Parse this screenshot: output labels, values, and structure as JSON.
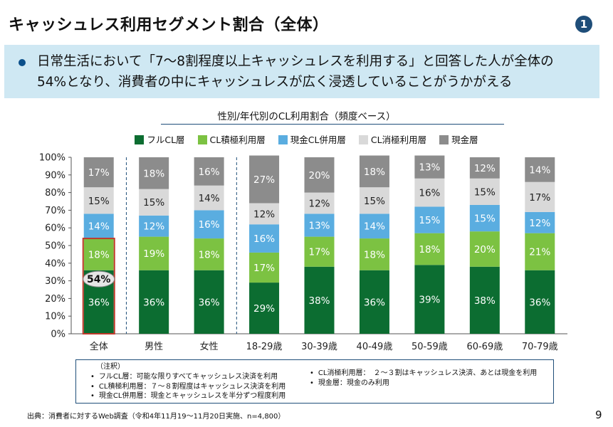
{
  "header": {
    "title": "キャッシュレス利用セグメント割合（全体）",
    "badge": "1"
  },
  "banner": {
    "line1": "日常生活において「7～8割程度以上キャッシュレスを利用する」と回答した人が全体の",
    "line2": "54%となり、消費者の中にキャッシュレスが広く浸透していることがうかがえる"
  },
  "chart_data": {
    "type": "bar",
    "stacked": true,
    "percent": true,
    "title": "性別/年代別のCL利用割合（頻度ベース）",
    "categories": [
      "全体",
      "男性",
      "女性",
      "18-29歳",
      "30-39歳",
      "40-49歳",
      "50-59歳",
      "60-69歳",
      "70-79歳"
    ],
    "series": [
      {
        "name": "フルCL層",
        "color": "#0c6d31",
        "values": [
          36,
          36,
          36,
          29,
          38,
          36,
          39,
          38,
          36
        ]
      },
      {
        "name": "CL積極利用層",
        "color": "#7cc242",
        "values": [
          18,
          19,
          18,
          17,
          17,
          18,
          18,
          20,
          21
        ]
      },
      {
        "name": "現金CL併用層",
        "color": "#5aade0",
        "values": [
          14,
          12,
          16,
          16,
          13,
          14,
          15,
          15,
          12
        ]
      },
      {
        "name": "CL消極利用層",
        "color": "#d9d9d9",
        "values": [
          15,
          15,
          14,
          12,
          12,
          15,
          16,
          15,
          17
        ]
      },
      {
        "name": "現金層",
        "color": "#8c8c8c",
        "values": [
          17,
          18,
          16,
          27,
          20,
          18,
          13,
          12,
          14
        ]
      }
    ],
    "yticks": [
      "0%",
      "10%",
      "20%",
      "30%",
      "40%",
      "50%",
      "60%",
      "70%",
      "80%",
      "90%",
      "100%"
    ],
    "ylim": [
      0,
      100
    ],
    "grid": false,
    "legend_position": "top",
    "highlight": {
      "category": "全体",
      "label": "54%",
      "value": 54,
      "border_color": "#c0392b"
    }
  },
  "notes": {
    "heading": "（注釈）",
    "items_left": [
      "フルCL層：可能な限りすべてキャッシュレス決済を利用",
      "CL積極利用層：７～８割程度はキャッシュレス決済を利用",
      "現金CL併用層：現金とキャッシュレスを半分ずつ程度利用"
    ],
    "items_right": [
      "CL消極利用層：　２～３割はキャッシュレス決済、あとは現金を利用",
      "現金層：現金のみ利用"
    ],
    "bullet": "•"
  },
  "footer": {
    "source": "出典：消費者に対するWeb調査（令和4年11月19～11月20日実施、n=4,800）",
    "page": "9"
  }
}
